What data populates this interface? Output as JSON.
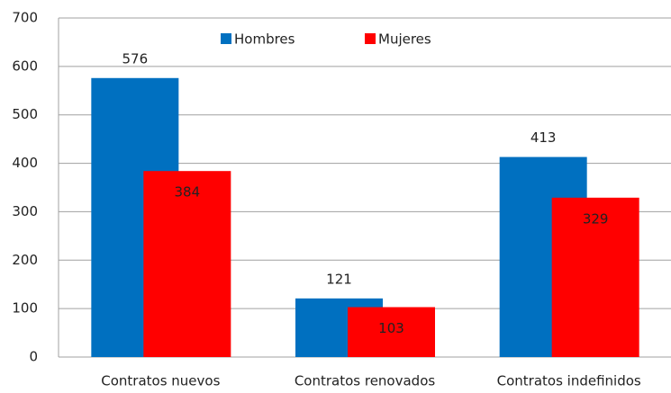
{
  "chart_data": {
    "type": "bar",
    "categories": [
      "Contratos nuevos",
      "Contratos renovados",
      "Contratos indefinidos"
    ],
    "series": [
      {
        "name": "Hombres",
        "color": "#0070c0",
        "values": [
          576,
          121,
          413
        ]
      },
      {
        "name": "Mujeres",
        "color": "#ff0000",
        "values": [
          384,
          103,
          329
        ]
      }
    ],
    "ylim": [
      0,
      700
    ],
    "yticks": [
      0,
      100,
      200,
      300,
      400,
      500,
      600,
      700
    ],
    "grid": true,
    "legend": "top"
  }
}
